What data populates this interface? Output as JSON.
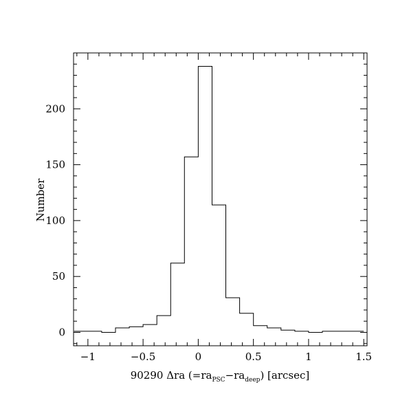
{
  "chart_data": {
    "type": "histogram",
    "xlabel_parts": {
      "prefix": "90290 Δra (=ra",
      "sub1": "PSC",
      "mid": "−ra",
      "sub2": "deep",
      "suffix": ") [arcsec]"
    },
    "ylabel": "Number",
    "xlim": [
      -1.13,
      1.53
    ],
    "ylim": [
      -12,
      250
    ],
    "x_ticks": [
      {
        "value": -1,
        "label": "−1"
      },
      {
        "value": -0.5,
        "label": "−0.5"
      },
      {
        "value": 0,
        "label": "0"
      },
      {
        "value": 0.5,
        "label": "0.5"
      },
      {
        "value": 1,
        "label": "1"
      },
      {
        "value": 1.5,
        "label": "1.5"
      }
    ],
    "y_ticks": [
      {
        "value": 0,
        "label": "0"
      },
      {
        "value": 50,
        "label": "50"
      },
      {
        "value": 100,
        "label": "100"
      },
      {
        "value": 150,
        "label": "150"
      },
      {
        "value": 200,
        "label": "200"
      }
    ],
    "x_minor_step": 0.1,
    "y_minor_step": 10,
    "bin_edges": [
      -1.125,
      -0.875,
      -0.75,
      -0.625,
      -0.5,
      -0.375,
      -0.25,
      -0.125,
      0.0,
      0.125,
      0.25,
      0.375,
      0.5,
      0.625,
      0.75,
      0.875,
      1.0,
      1.125,
      1.25,
      1.5
    ],
    "counts": [
      1,
      0,
      4,
      5,
      7,
      15,
      62,
      157,
      238,
      114,
      31,
      17,
      6,
      4,
      2,
      1,
      0,
      1,
      1
    ],
    "grid": false
  }
}
